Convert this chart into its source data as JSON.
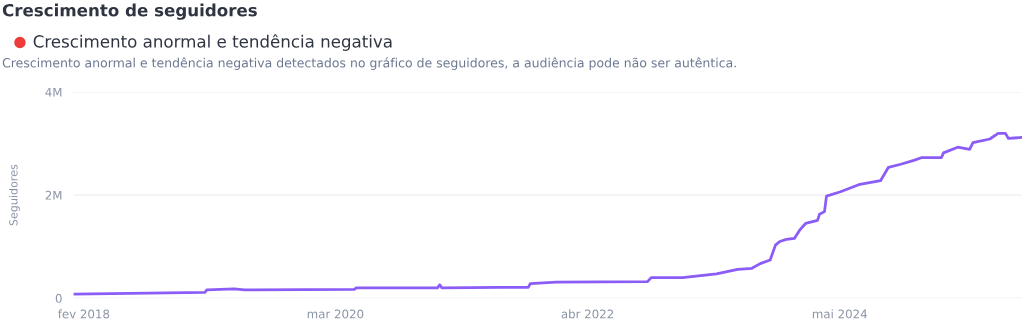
{
  "chart_data": {
    "type": "line",
    "title": "Crescimento de seguidores",
    "subtitle": "Crescimento anormal e tendência negativa",
    "annotations": [
      "Crescimento anormal e tendência negativa detectados no gráfico de seguidores, a audiência pode não ser autêntica."
    ],
    "ylabel": "Seguidores",
    "x": [
      "2018-01-01",
      "2019-02-01",
      "2019-02-07",
      "2019-05-01",
      "2019-06-01",
      "2020-04-27",
      "2020-05-03",
      "2021-01-03",
      "2021-01-10",
      "2021-01-16",
      "2021-07-10",
      "2021-10-04",
      "2021-10-10",
      "2021-12-28",
      "2022-09-29",
      "2022-10-10",
      "2023-01-13",
      "2023-04-25",
      "2023-06-28",
      "2023-08-10",
      "2023-09-04",
      "2023-10-04",
      "2023-10-20",
      "2023-11-02",
      "2023-11-22",
      "2023-12-16",
      "2024-01-01",
      "2024-01-19",
      "2024-02-24",
      "2024-03-01",
      "2024-03-16",
      "2024-03-22",
      "2024-05-01",
      "2024-05-25",
      "2024-07-01",
      "2024-09-01",
      "2024-09-25",
      "2024-11-01",
      "2024-12-13",
      "2025-01-04",
      "2025-03-04",
      "2025-03-10",
      "2025-04-22",
      "2025-05-28",
      "2025-06-07",
      "2025-07-28",
      "2025-08-22",
      "2025-09-13",
      "2025-09-22",
      "2025-11-02"
    ],
    "series": [
      {
        "color": "#8b5cf6",
        "values": [
          80000,
          110000,
          160000,
          180000,
          160000,
          170000,
          200000,
          200000,
          260000,
          200000,
          210000,
          210000,
          280000,
          310000,
          320000,
          400000,
          400000,
          470000,
          560000,
          580000,
          670000,
          740000,
          1030000,
          1100000,
          1140000,
          1160000,
          1320000,
          1450000,
          1510000,
          1630000,
          1680000,
          1980000,
          2060000,
          2120000,
          2210000,
          2280000,
          2540000,
          2600000,
          2680000,
          2730000,
          2730000,
          2820000,
          2930000,
          2890000,
          3020000,
          3090000,
          3200000,
          3200000,
          3100000,
          3120000
        ]
      }
    ],
    "xlim": [
      "2018-01-01",
      "2025-11-02"
    ],
    "xticks": [
      {
        "value": "2018-02-01",
        "label": "fev 2018"
      },
      {
        "value": "2020-03-01",
        "label": "mar 2020"
      },
      {
        "value": "2022-04-01",
        "label": "abr 2022"
      },
      {
        "value": "2024-05-01",
        "label": "mai 2024"
      }
    ],
    "ylim": [
      0,
      4000000
    ],
    "yticks": [
      0,
      {
        "value": 2000000,
        "label": "2M"
      },
      {
        "value": 4000000,
        "label": "4M"
      }
    ],
    "grid": "y",
    "marker": "none",
    "line_style": "solid"
  }
}
